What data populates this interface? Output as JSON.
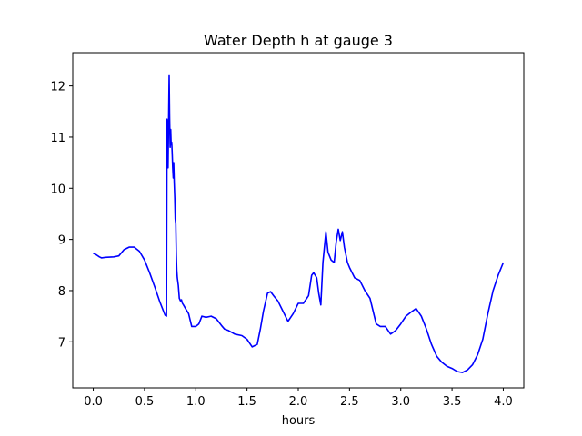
{
  "chart_data": {
    "type": "line",
    "title": "Water Depth h at gauge 3",
    "xlabel": "hours",
    "ylabel": "",
    "xlim": [
      -0.2,
      4.2
    ],
    "ylim": [
      6.1,
      12.65
    ],
    "x_ticks": [
      0.0,
      0.5,
      1.0,
      1.5,
      2.0,
      2.5,
      3.0,
      3.5,
      4.0
    ],
    "x_tick_labels": [
      "0.0",
      "0.5",
      "1.0",
      "1.5",
      "2.0",
      "2.5",
      "3.0",
      "3.5",
      "4.0"
    ],
    "y_ticks": [
      7,
      8,
      9,
      10,
      11,
      12
    ],
    "y_tick_labels": [
      "7",
      "8",
      "9",
      "10",
      "11",
      "12"
    ],
    "grid": false,
    "series": [
      {
        "color": "#0000ff",
        "x": [
          0.0,
          0.03,
          0.06,
          0.08,
          0.12,
          0.2,
          0.25,
          0.3,
          0.35,
          0.4,
          0.45,
          0.5,
          0.55,
          0.6,
          0.65,
          0.7,
          0.715,
          0.72,
          0.725,
          0.73,
          0.735,
          0.74,
          0.745,
          0.75,
          0.755,
          0.76,
          0.765,
          0.77,
          0.775,
          0.78,
          0.785,
          0.79,
          0.795,
          0.8,
          0.805,
          0.81,
          0.815,
          0.82,
          0.83,
          0.84,
          0.85,
          0.86,
          0.87,
          0.88,
          0.9,
          0.93,
          0.96,
          1.0,
          1.03,
          1.06,
          1.1,
          1.15,
          1.2,
          1.25,
          1.28,
          1.32,
          1.38,
          1.45,
          1.5,
          1.55,
          1.6,
          1.63,
          1.66,
          1.7,
          1.73,
          1.76,
          1.8,
          1.85,
          1.9,
          1.95,
          2.0,
          2.05,
          2.1,
          2.13,
          2.15,
          2.18,
          2.2,
          2.22,
          2.24,
          2.27,
          2.29,
          2.32,
          2.35,
          2.37,
          2.39,
          2.41,
          2.43,
          2.45,
          2.48,
          2.5,
          2.55,
          2.6,
          2.65,
          2.7,
          2.73,
          2.76,
          2.8,
          2.85,
          2.9,
          2.95,
          3.0,
          3.05,
          3.1,
          3.15,
          3.2,
          3.25,
          3.3,
          3.35,
          3.4,
          3.45,
          3.5,
          3.55,
          3.6,
          3.65,
          3.7,
          3.75,
          3.8,
          3.85,
          3.9,
          3.95,
          4.0
        ],
        "y": [
          8.73,
          8.7,
          8.66,
          8.64,
          8.65,
          8.66,
          8.68,
          8.8,
          8.85,
          8.85,
          8.77,
          8.6,
          8.35,
          8.07,
          7.78,
          7.52,
          7.5,
          11.35,
          11.2,
          10.4,
          11.3,
          12.2,
          11.4,
          10.8,
          11.15,
          10.85,
          10.9,
          10.7,
          10.4,
          10.2,
          10.5,
          10.1,
          9.8,
          9.4,
          9.3,
          8.7,
          8.4,
          8.25,
          8.1,
          7.85,
          7.8,
          7.82,
          7.75,
          7.72,
          7.65,
          7.55,
          7.3,
          7.3,
          7.35,
          7.5,
          7.48,
          7.5,
          7.45,
          7.32,
          7.25,
          7.22,
          7.15,
          7.12,
          7.05,
          6.9,
          6.95,
          7.25,
          7.6,
          7.95,
          7.98,
          7.9,
          7.8,
          7.6,
          7.4,
          7.55,
          7.75,
          7.75,
          7.9,
          8.3,
          8.35,
          8.25,
          7.95,
          7.72,
          8.55,
          9.15,
          8.75,
          8.6,
          8.55,
          8.95,
          9.2,
          8.98,
          9.15,
          8.85,
          8.55,
          8.45,
          8.25,
          8.2,
          8.0,
          7.85,
          7.6,
          7.35,
          7.3,
          7.3,
          7.15,
          7.22,
          7.35,
          7.5,
          7.58,
          7.65,
          7.5,
          7.25,
          6.95,
          6.72,
          6.6,
          6.52,
          6.48,
          6.42,
          6.4,
          6.45,
          6.55,
          6.75,
          7.05,
          7.55,
          8.0,
          8.3,
          8.55
        ]
      }
    ]
  }
}
